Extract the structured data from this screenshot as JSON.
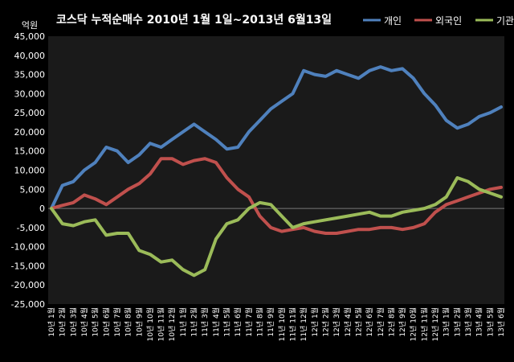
{
  "chart_data": {
    "type": "line",
    "title": "코스닥 누적순매수 2010년 1월 1일~2013년 6월13일",
    "ylabel": "억원",
    "ylim": [
      -25000,
      45000
    ],
    "yticks": [
      45000,
      40000,
      35000,
      30000,
      25000,
      20000,
      15000,
      10000,
      5000,
      0,
      -5000,
      -10000,
      -15000,
      -20000,
      -25000
    ],
    "ytick_labels": [
      "45,000",
      "40,000",
      "35,000",
      "30,000",
      "25,000",
      "20,000",
      "15,000",
      "10,000",
      "5,000",
      "0",
      "-5,000",
      "-10,000",
      "-15,000",
      "-20,000",
      "-25,000"
    ],
    "x": [
      "10년 1월",
      "10년 2월",
      "10년 3월",
      "10년 4월",
      "10년 5월",
      "10년 6월",
      "10년 7월",
      "10년 8월",
      "10년 9월",
      "10년 10월",
      "10년 11월",
      "10년 12월",
      "11년 1월",
      "11년 2월",
      "11년 3월",
      "11년 4월",
      "11년 5월",
      "11년 6월",
      "11년 7월",
      "11년 8월",
      "11년 9월",
      "11년 10월",
      "11년 11월",
      "11년 12월",
      "12년 1월",
      "12년 2월",
      "12년 3월",
      "12년 4월",
      "12년 5월",
      "12년 6월",
      "12년 7월",
      "12년 8월",
      "12년 9월",
      "12년 10월",
      "12년 11월",
      "12년 12월",
      "13년 1월",
      "13년 2월",
      "13년 3월",
      "13년 4월",
      "13년 5월",
      "13년 6월"
    ],
    "series": [
      {
        "name": "개인",
        "color": "#4F81BD",
        "values": [
          0,
          6000,
          7000,
          10000,
          12000,
          16000,
          15000,
          12000,
          14000,
          17000,
          16000,
          18000,
          20000,
          22000,
          20000,
          18000,
          15500,
          16000,
          20000,
          23000,
          26000,
          28000,
          30000,
          36000,
          35000,
          34500,
          36000,
          35000,
          34000,
          36000,
          37000,
          36000,
          36500,
          34000,
          30000,
          27000,
          23000,
          21000,
          22000,
          24000,
          25000,
          26500
        ]
      },
      {
        "name": "외국인",
        "color": "#C0504D",
        "values": [
          0,
          800,
          1500,
          3500,
          2500,
          1000,
          3000,
          5000,
          6500,
          9000,
          13000,
          13000,
          11500,
          12500,
          13000,
          12000,
          8000,
          5000,
          3000,
          -2000,
          -5000,
          -6000,
          -5500,
          -5000,
          -6000,
          -6500,
          -6500,
          -6000,
          -5500,
          -5500,
          -5000,
          -5000,
          -5500,
          -5000,
          -4000,
          -1000,
          1000,
          2000,
          3000,
          4000,
          5000,
          5500
        ]
      },
      {
        "name": "기관",
        "color": "#9BBB59",
        "values": [
          0,
          -4000,
          -4500,
          -3500,
          -3000,
          -7000,
          -6500,
          -6500,
          -11000,
          -12000,
          -14000,
          -13500,
          -16000,
          -17500,
          -16000,
          -8000,
          -4000,
          -3000,
          0,
          1500,
          1000,
          -2000,
          -5000,
          -4000,
          -3500,
          -3000,
          -2500,
          -2000,
          -1500,
          -1000,
          -2000,
          -2000,
          -1000,
          -500,
          0,
          1000,
          3000,
          8000,
          7000,
          5000,
          4000,
          3000
        ]
      }
    ],
    "legend_position": "top-right",
    "grid": false
  }
}
